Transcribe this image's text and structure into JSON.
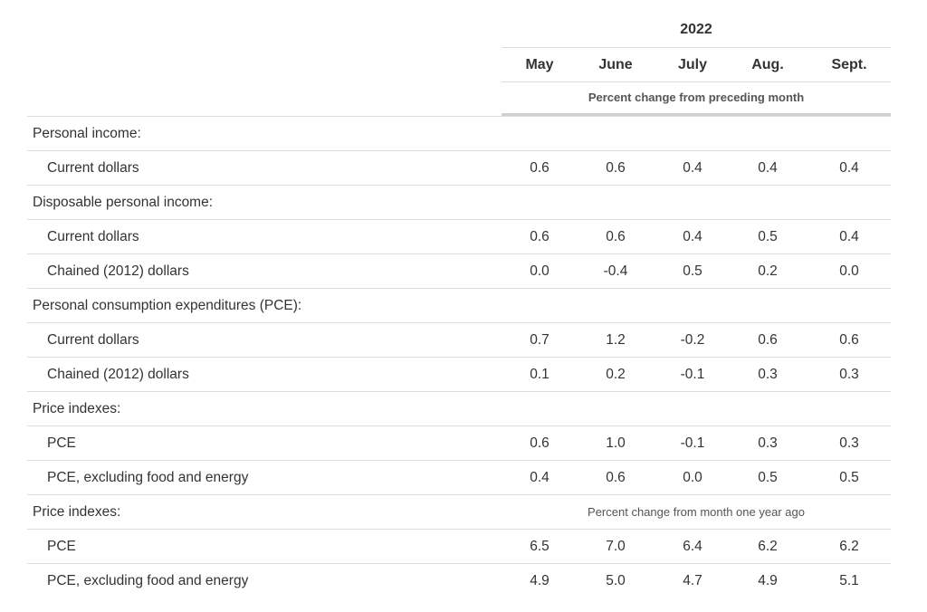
{
  "header": {
    "year": "2022",
    "months": [
      "May",
      "June",
      "July",
      "Aug.",
      "Sept."
    ],
    "note_monthly": "Percent change from preceding month",
    "note_yearly": "Percent change from month one year ago"
  },
  "rows": [
    {
      "label": "Personal income:",
      "type": "section",
      "values": [
        "",
        "",
        "",
        "",
        ""
      ]
    },
    {
      "label": "Current dollars",
      "type": "sub",
      "values": [
        "0.6",
        "0.6",
        "0.4",
        "0.4",
        "0.4"
      ]
    },
    {
      "label": "Disposable personal income:",
      "type": "section",
      "values": [
        "",
        "",
        "",
        "",
        ""
      ]
    },
    {
      "label": "Current dollars",
      "type": "sub",
      "values": [
        "0.6",
        "0.6",
        "0.4",
        "0.5",
        "0.4"
      ]
    },
    {
      "label": "Chained (2012) dollars",
      "type": "sub",
      "values": [
        "0.0",
        "-0.4",
        "0.5",
        "0.2",
        "0.0"
      ]
    },
    {
      "label": "Personal consumption expenditures (PCE):",
      "type": "section",
      "values": [
        "",
        "",
        "",
        "",
        ""
      ]
    },
    {
      "label": "Current dollars",
      "type": "sub",
      "values": [
        "0.7",
        "1.2",
        "-0.2",
        "0.6",
        "0.6"
      ]
    },
    {
      "label": "Chained (2012) dollars",
      "type": "sub",
      "values": [
        "0.1",
        "0.2",
        "-0.1",
        "0.3",
        "0.3"
      ]
    },
    {
      "label": "Price indexes:",
      "type": "section",
      "values": [
        "",
        "",
        "",
        "",
        ""
      ]
    },
    {
      "label": "PCE",
      "type": "sub",
      "values": [
        "0.6",
        "1.0",
        "-0.1",
        "0.3",
        "0.3"
      ]
    },
    {
      "label": "PCE, excluding food and energy",
      "type": "sub",
      "values": [
        "0.4",
        "0.6",
        "0.0",
        "0.5",
        "0.5"
      ]
    },
    {
      "label": "Price indexes:",
      "type": "section-note",
      "values": [
        "",
        "",
        "",
        "",
        ""
      ]
    },
    {
      "label": "PCE",
      "type": "sub",
      "values": [
        "6.5",
        "7.0",
        "6.4",
        "6.2",
        "6.2"
      ]
    },
    {
      "label": "PCE, excluding food and energy",
      "type": "sub",
      "values": [
        "4.9",
        "5.0",
        "4.7",
        "4.9",
        "5.1"
      ]
    }
  ]
}
